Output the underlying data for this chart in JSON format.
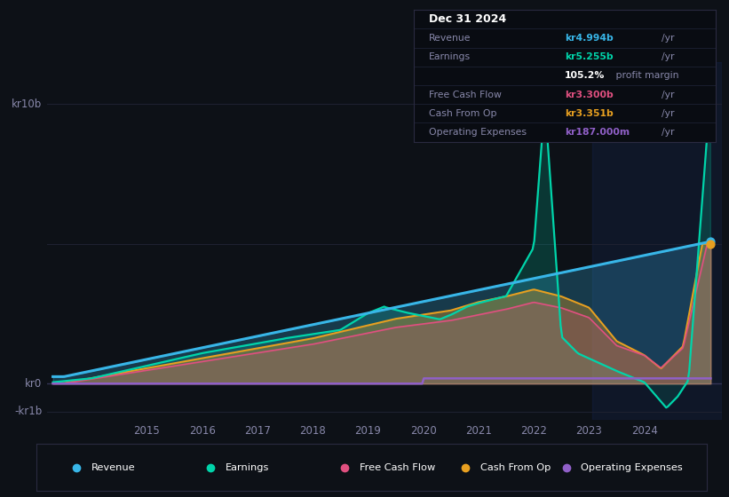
{
  "bg_color": "#0d1117",
  "grid_color": "#1e2130",
  "text_color": "#8888aa",
  "ylabel_top": "kr10b",
  "ylabel_zero": "kr0",
  "ylabel_neg": "-kr1b",
  "ylim": [
    -1.3,
    11.5
  ],
  "xlim_start": 2013.2,
  "xlim_end": 2025.4,
  "revenue_color": "#38b6e8",
  "earnings_color": "#00d4aa",
  "fcf_color": "#e05080",
  "cashfromop_color": "#e8a020",
  "opex_color": "#9060c8",
  "tick_years": [
    2015,
    2016,
    2017,
    2018,
    2019,
    2020,
    2021,
    2022,
    2023,
    2024
  ],
  "tooltip": {
    "date": "Dec 31 2024",
    "revenue_label": "Revenue",
    "revenue_val": "kr4.994b",
    "revenue_color": "#38b6e8",
    "earnings_label": "Earnings",
    "earnings_val": "kr5.255b",
    "earnings_color": "#00d4aa",
    "margin_val": "105.2%",
    "margin_suffix": " profit margin",
    "fcf_label": "Free Cash Flow",
    "fcf_val": "kr3.300b",
    "fcf_color": "#e05080",
    "cashop_label": "Cash From Op",
    "cashop_val": "kr3.351b",
    "cashop_color": "#e8a020",
    "opex_label": "Operating Expenses",
    "opex_val": "kr187.000m",
    "opex_color": "#9060c8"
  },
  "legend_items": [
    {
      "label": "Revenue",
      "color": "#38b6e8"
    },
    {
      "label": "Earnings",
      "color": "#00d4aa"
    },
    {
      "label": "Free Cash Flow",
      "color": "#e05080"
    },
    {
      "label": "Cash From Op",
      "color": "#e8a020"
    },
    {
      "label": "Operating Expenses",
      "color": "#9060c8"
    }
  ]
}
